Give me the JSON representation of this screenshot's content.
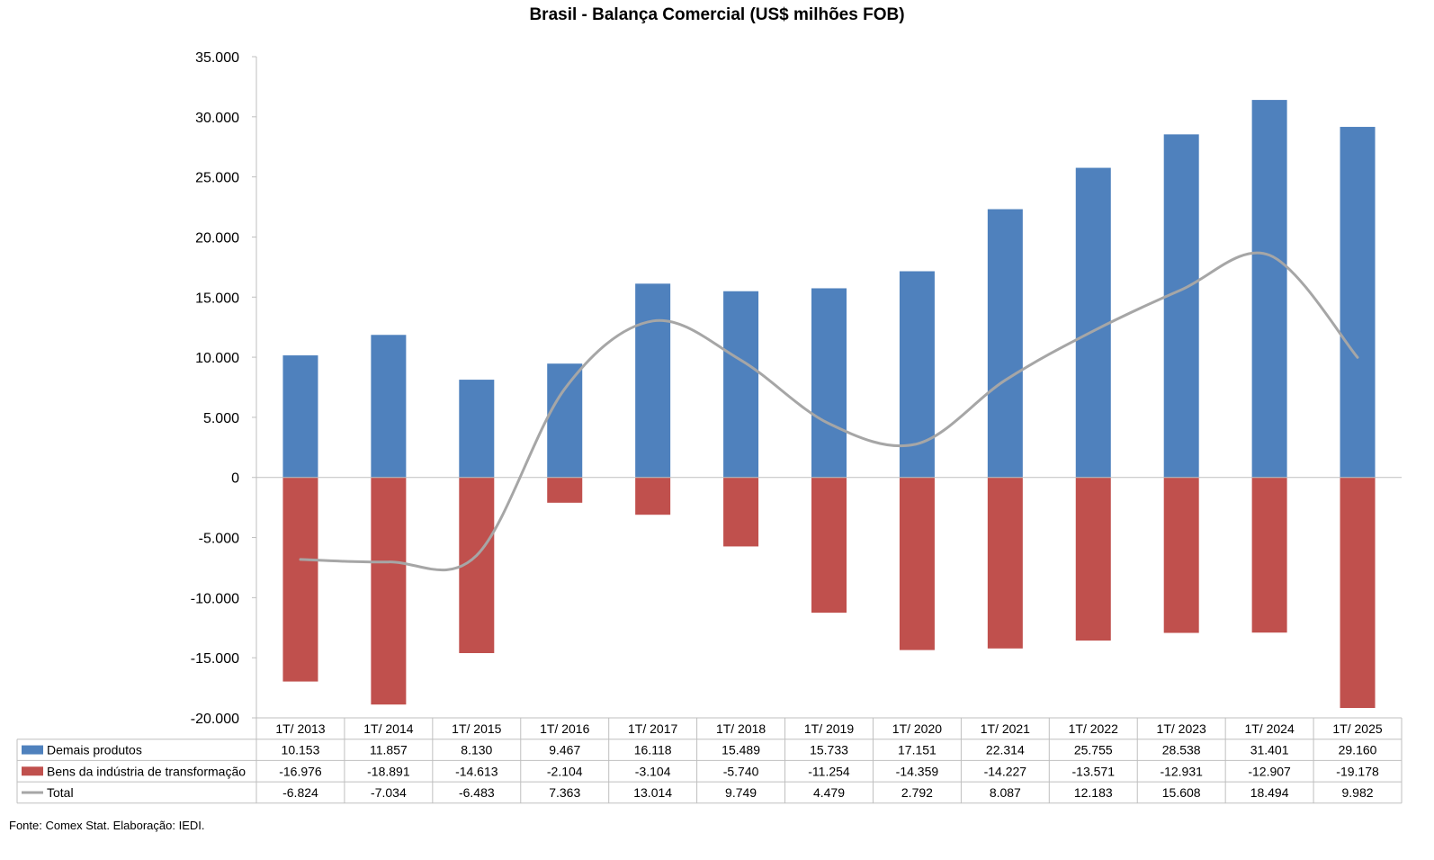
{
  "chart_data": {
    "type": "bar",
    "title": "Brasil - Balança Comercial (US$ milhões FOB)",
    "categories": [
      "1T/ 2013",
      "1T/ 2014",
      "1T/ 2015",
      "1T/ 2016",
      "1T/ 2017",
      "1T/ 2018",
      "1T/ 2019",
      "1T/ 2020",
      "1T/ 2021",
      "1T/ 2022",
      "1T/ 2023",
      "1T/ 2024",
      "1T/ 2025"
    ],
    "series": [
      {
        "name": "Demais produtos",
        "type": "bar",
        "color": "#4F81BD",
        "values": [
          10153,
          11857,
          8130,
          9467,
          16118,
          15489,
          15733,
          17151,
          22314,
          25755,
          28538,
          31401,
          29160
        ],
        "labels": [
          "10.153",
          "11.857",
          "8.130",
          "9.467",
          "16.118",
          "15.489",
          "15.733",
          "17.151",
          "22.314",
          "25.755",
          "28.538",
          "31.401",
          "29.160"
        ]
      },
      {
        "name": "Bens da indústria de transformação",
        "type": "bar",
        "color": "#C0504D",
        "values": [
          -16976,
          -18891,
          -14613,
          -2104,
          -3104,
          -5740,
          -11254,
          -14359,
          -14227,
          -13571,
          -12931,
          -12907,
          -19178
        ],
        "labels": [
          "-16.976",
          "-18.891",
          "-14.613",
          "-2.104",
          "-3.104",
          "-5.740",
          "-11.254",
          "-14.359",
          "-14.227",
          "-13.571",
          "-12.931",
          "-12.907",
          "-19.178"
        ]
      },
      {
        "name": "Total",
        "type": "line",
        "color": "#A6A6A6",
        "values": [
          -6824,
          -7034,
          -6483,
          7363,
          13014,
          9749,
          4479,
          2792,
          8087,
          12183,
          15608,
          18494,
          9982
        ],
        "labels": [
          "-6.824",
          "-7.034",
          "-6.483",
          "7.363",
          "13.014",
          "9.749",
          "4.479",
          "2.792",
          "8.087",
          "12.183",
          "15.608",
          "18.494",
          "9.982"
        ]
      }
    ],
    "ylim": [
      -20000,
      35000
    ],
    "yticks": [
      35000,
      30000,
      25000,
      20000,
      15000,
      10000,
      5000,
      0,
      -5000,
      -10000,
      -15000,
      -20000
    ],
    "ytick_labels": [
      "35.000",
      "30.000",
      "25.000",
      "20.000",
      "15.000",
      "10.000",
      "5.000",
      "0",
      "-5.000",
      "-10.000",
      "-15.000",
      "-20.000"
    ],
    "data_table": true,
    "grid": false
  },
  "source": "Fonte: Comex Stat. Elaboração: IEDI."
}
